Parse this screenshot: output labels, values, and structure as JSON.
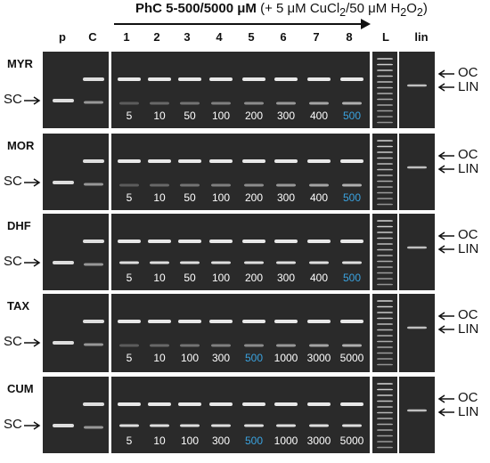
{
  "header": {
    "title_bold": "PhC 5-500/5000 μM",
    "title_rest_prefix": " (+ 5 μM CuCl",
    "title_sub1": "2",
    "title_rest_mid": "/50 μM H",
    "title_sub2": "2",
    "title_rest_o": "O",
    "title_sub3": "2",
    "title_rest_suffix": ")"
  },
  "lanes": {
    "p": "p",
    "c": "C",
    "l": "L",
    "lin": "lin",
    "numbers": [
      "1",
      "2",
      "3",
      "4",
      "5",
      "6",
      "7",
      "8"
    ]
  },
  "side_labels": {
    "sc": "SC",
    "oc": "OC",
    "lin": "LIN"
  },
  "gels": [
    {
      "name": "MYR",
      "concentrations": [
        "5",
        "10",
        "50",
        "100",
        "200",
        "300",
        "400",
        "500"
      ],
      "highlight_index": 7
    },
    {
      "name": "MOR",
      "concentrations": [
        "5",
        "10",
        "50",
        "100",
        "200",
        "300",
        "400",
        "500"
      ],
      "highlight_index": 7
    },
    {
      "name": "DHF",
      "concentrations": [
        "5",
        "10",
        "50",
        "100",
        "200",
        "300",
        "400",
        "500"
      ],
      "highlight_index": 7
    },
    {
      "name": "TAX",
      "concentrations": [
        "5",
        "10",
        "100",
        "300",
        "500",
        "1000",
        "3000",
        "5000"
      ],
      "highlight_index": 4
    },
    {
      "name": "CUM",
      "concentrations": [
        "5",
        "10",
        "100",
        "300",
        "500",
        "1000",
        "3000",
        "5000"
      ],
      "highlight_index": 4
    }
  ],
  "colors": {
    "gel_bg": "#2a2a2a",
    "band": "#f2f2f2",
    "highlight": "#3aa3e0"
  }
}
